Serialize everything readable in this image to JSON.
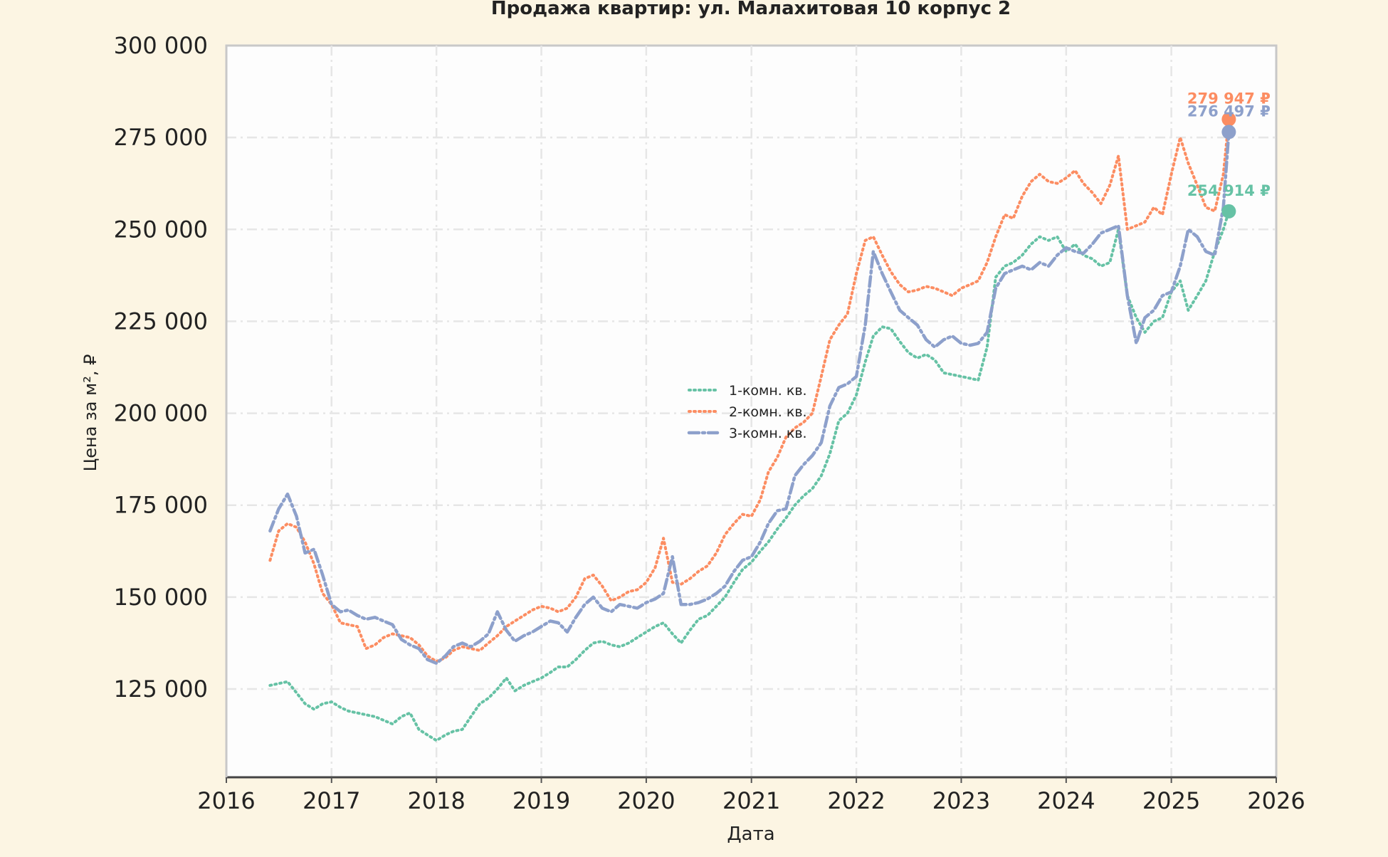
{
  "chart_data": {
    "type": "line",
    "title": "Продажа квартир: ул. Малахитовая 10 корпус 2",
    "xlabel": "Дата",
    "ylabel": "Цена за м², ₽",
    "xlim": [
      "2016-01-01",
      "2026-01-01"
    ],
    "ylim": [
      101000,
      300000
    ],
    "x_ticks": [
      "2016",
      "2017",
      "2018",
      "2019",
      "2020",
      "2021",
      "2022",
      "2023",
      "2024",
      "2025",
      "2026"
    ],
    "y_ticks": [
      "125 000",
      "150 000",
      "175 000",
      "200 000",
      "225 000",
      "250 000",
      "275 000",
      "300 000"
    ],
    "y_tick_values": [
      125000,
      150000,
      175000,
      200000,
      225000,
      250000,
      275000,
      300000
    ],
    "grid": true,
    "legend_position": "center",
    "colors": {
      "background": "#fcf5e3",
      "plot_bg": "#fdfdfd",
      "grid": "#e6e6e6"
    },
    "series": [
      {
        "name": "1-комн. кв.",
        "color": "#66c2a5",
        "dash": "dotted",
        "last_label": "254 914 ₽",
        "last_value": 254914,
        "x": [
          "2016-06-01",
          "2016-07-01",
          "2016-08-01",
          "2016-09-01",
          "2016-10-01",
          "2016-11-01",
          "2016-12-01",
          "2017-01-01",
          "2017-02-01",
          "2017-03-01",
          "2017-04-01",
          "2017-05-01",
          "2017-06-01",
          "2017-07-01",
          "2017-08-01",
          "2017-09-01",
          "2017-10-01",
          "2017-11-01",
          "2017-12-01",
          "2018-01-01",
          "2018-02-01",
          "2018-03-01",
          "2018-04-01",
          "2018-05-01",
          "2018-06-01",
          "2018-07-01",
          "2018-08-01",
          "2018-09-01",
          "2018-10-01",
          "2018-11-01",
          "2018-12-01",
          "2019-01-01",
          "2019-02-01",
          "2019-03-01",
          "2019-04-01",
          "2019-05-01",
          "2019-06-01",
          "2019-07-01",
          "2019-08-01",
          "2019-09-01",
          "2019-10-01",
          "2019-11-01",
          "2019-12-01",
          "2020-01-01",
          "2020-02-01",
          "2020-03-01",
          "2020-04-01",
          "2020-05-01",
          "2020-06-01",
          "2020-07-01",
          "2020-08-01",
          "2020-09-01",
          "2020-10-01",
          "2020-11-01",
          "2020-12-01",
          "2021-01-01",
          "2021-02-01",
          "2021-03-01",
          "2021-04-01",
          "2021-05-01",
          "2021-06-01",
          "2021-07-01",
          "2021-08-01",
          "2021-09-01",
          "2021-10-01",
          "2021-11-01",
          "2021-12-01",
          "2022-01-01",
          "2022-02-01",
          "2022-03-01",
          "2022-04-01",
          "2022-05-01",
          "2022-06-01",
          "2022-07-01",
          "2022-08-01",
          "2022-09-01",
          "2022-10-01",
          "2022-11-01",
          "2022-12-01",
          "2023-01-01",
          "2023-02-01",
          "2023-03-01",
          "2023-04-01",
          "2023-05-01",
          "2023-06-01",
          "2023-07-01",
          "2023-08-01",
          "2023-09-01",
          "2023-10-01",
          "2023-11-01",
          "2023-12-01",
          "2024-01-01",
          "2024-02-01",
          "2024-03-01",
          "2024-04-01",
          "2024-05-01",
          "2024-06-01",
          "2024-07-01",
          "2024-08-01",
          "2024-09-01",
          "2024-10-01",
          "2024-11-01",
          "2024-12-01",
          "2025-01-01",
          "2025-02-01",
          "2025-03-01",
          "2025-04-01",
          "2025-05-01",
          "2025-06-01",
          "2025-07-01",
          "2025-07-20"
        ],
        "values": [
          126000,
          126500,
          127000,
          124000,
          121000,
          119500,
          121000,
          121500,
          120000,
          119000,
          118500,
          118000,
          117500,
          116500,
          115500,
          117500,
          118500,
          114000,
          112500,
          111000,
          112500,
          113500,
          114000,
          117500,
          121000,
          122500,
          125000,
          128000,
          124500,
          126000,
          127000,
          128000,
          129500,
          131000,
          131000,
          133000,
          135500,
          137500,
          138000,
          137000,
          136500,
          137500,
          139000,
          140500,
          142000,
          143000,
          140000,
          137500,
          141000,
          144000,
          145000,
          147500,
          150000,
          154000,
          157500,
          159500,
          162500,
          165000,
          168500,
          171500,
          175000,
          177500,
          179500,
          183000,
          189000,
          198000,
          200000,
          205000,
          214000,
          221000,
          223500,
          223000,
          219500,
          216500,
          215000,
          216000,
          214500,
          211000,
          210500,
          210000,
          209500,
          209000,
          218000,
          237000,
          240000,
          241000,
          243000,
          246000,
          248000,
          247000,
          248000,
          244000,
          246000,
          243000,
          242000,
          240000,
          241000,
          250000,
          232000,
          226000,
          222000,
          225000,
          226000,
          233000,
          236000,
          228000,
          232000,
          236000,
          244000,
          250000,
          254914
        ]
      },
      {
        "name": "2-комн. кв.",
        "color": "#fc8d62",
        "dash": "dotted",
        "last_label": "279 947 ₽",
        "last_value": 279947,
        "x": [
          "2016-06-01",
          "2016-07-01",
          "2016-08-01",
          "2016-09-01",
          "2016-10-01",
          "2016-11-01",
          "2016-12-01",
          "2017-01-01",
          "2017-02-01",
          "2017-03-01",
          "2017-04-01",
          "2017-05-01",
          "2017-06-01",
          "2017-07-01",
          "2017-08-01",
          "2017-09-01",
          "2017-10-01",
          "2017-11-01",
          "2017-12-01",
          "2018-01-01",
          "2018-02-01",
          "2018-03-01",
          "2018-04-01",
          "2018-05-01",
          "2018-06-01",
          "2018-07-01",
          "2018-08-01",
          "2018-09-01",
          "2018-10-01",
          "2018-11-01",
          "2018-12-01",
          "2019-01-01",
          "2019-02-01",
          "2019-03-01",
          "2019-04-01",
          "2019-05-01",
          "2019-06-01",
          "2019-07-01",
          "2019-08-01",
          "2019-09-01",
          "2019-10-01",
          "2019-11-01",
          "2019-12-01",
          "2020-01-01",
          "2020-02-01",
          "2020-03-01",
          "2020-04-01",
          "2020-05-01",
          "2020-06-01",
          "2020-07-01",
          "2020-08-01",
          "2020-09-01",
          "2020-10-01",
          "2020-11-01",
          "2020-12-01",
          "2021-01-01",
          "2021-02-01",
          "2021-03-01",
          "2021-04-01",
          "2021-05-01",
          "2021-06-01",
          "2021-07-01",
          "2021-08-01",
          "2021-09-01",
          "2021-10-01",
          "2021-11-01",
          "2021-12-01",
          "2022-01-01",
          "2022-02-01",
          "2022-03-01",
          "2022-04-01",
          "2022-05-01",
          "2022-06-01",
          "2022-07-01",
          "2022-08-01",
          "2022-09-01",
          "2022-10-01",
          "2022-11-01",
          "2022-12-01",
          "2023-01-01",
          "2023-02-01",
          "2023-03-01",
          "2023-04-01",
          "2023-05-01",
          "2023-06-01",
          "2023-07-01",
          "2023-08-01",
          "2023-09-01",
          "2023-10-01",
          "2023-11-01",
          "2023-12-01",
          "2024-01-01",
          "2024-02-01",
          "2024-03-01",
          "2024-04-01",
          "2024-05-01",
          "2024-06-01",
          "2024-07-01",
          "2024-08-01",
          "2024-09-01",
          "2024-10-01",
          "2024-11-01",
          "2024-12-01",
          "2025-01-01",
          "2025-02-01",
          "2025-03-01",
          "2025-04-01",
          "2025-05-01",
          "2025-06-01",
          "2025-07-01",
          "2025-07-20"
        ],
        "values": [
          160000,
          168000,
          170000,
          169000,
          165000,
          159000,
          151000,
          148000,
          143000,
          142500,
          142000,
          136000,
          137000,
          139000,
          140000,
          139500,
          139000,
          137000,
          134000,
          132500,
          133500,
          135500,
          136500,
          136000,
          135500,
          137500,
          139500,
          142000,
          143500,
          145000,
          146500,
          147500,
          147000,
          146000,
          147000,
          150000,
          155000,
          156000,
          153000,
          149000,
          150000,
          151500,
          152000,
          154000,
          158000,
          166000,
          154000,
          153500,
          155000,
          157000,
          158500,
          162000,
          167000,
          170000,
          172500,
          172000,
          176500,
          184000,
          188000,
          193500,
          196000,
          197500,
          200000,
          210000,
          220000,
          224000,
          227000,
          238000,
          247000,
          248000,
          243000,
          238500,
          235000,
          233000,
          233500,
          234500,
          234000,
          233000,
          232000,
          234000,
          235000,
          236000,
          241000,
          248000,
          254000,
          253000,
          259000,
          263000,
          265000,
          263000,
          262500,
          264000,
          266000,
          262500,
          260000,
          257000,
          262000,
          270000,
          250000,
          251000,
          252000,
          256000,
          254000,
          265000,
          275000,
          268000,
          262000,
          256000,
          255000,
          265000,
          279947
        ]
      },
      {
        "name": "3-комн. кв.",
        "color": "#8da0cb",
        "dash": "dashdot",
        "last_label": "276 497 ₽",
        "last_value": 276497,
        "x": [
          "2016-06-01",
          "2016-07-01",
          "2016-08-01",
          "2016-09-01",
          "2016-10-01",
          "2016-11-01",
          "2016-12-01",
          "2017-01-01",
          "2017-02-01",
          "2017-03-01",
          "2017-04-01",
          "2017-05-01",
          "2017-06-01",
          "2017-07-01",
          "2017-08-01",
          "2017-09-01",
          "2017-10-01",
          "2017-11-01",
          "2017-12-01",
          "2018-01-01",
          "2018-02-01",
          "2018-03-01",
          "2018-04-01",
          "2018-05-01",
          "2018-06-01",
          "2018-07-01",
          "2018-08-01",
          "2018-09-01",
          "2018-10-01",
          "2018-11-01",
          "2018-12-01",
          "2019-01-01",
          "2019-02-01",
          "2019-03-01",
          "2019-04-01",
          "2019-05-01",
          "2019-06-01",
          "2019-07-01",
          "2019-08-01",
          "2019-09-01",
          "2019-10-01",
          "2019-11-01",
          "2019-12-01",
          "2020-01-01",
          "2020-02-01",
          "2020-03-01",
          "2020-04-01",
          "2020-05-01",
          "2020-06-01",
          "2020-07-01",
          "2020-08-01",
          "2020-09-01",
          "2020-10-01",
          "2020-11-01",
          "2020-12-01",
          "2021-01-01",
          "2021-02-01",
          "2021-03-01",
          "2021-04-01",
          "2021-05-01",
          "2021-06-01",
          "2021-07-01",
          "2021-08-01",
          "2021-09-01",
          "2021-10-01",
          "2021-11-01",
          "2021-12-01",
          "2022-01-01",
          "2022-02-01",
          "2022-03-01",
          "2022-04-01",
          "2022-05-01",
          "2022-06-01",
          "2022-07-01",
          "2022-08-01",
          "2022-09-01",
          "2022-10-01",
          "2022-11-01",
          "2022-12-01",
          "2023-01-01",
          "2023-02-01",
          "2023-03-01",
          "2023-04-01",
          "2023-05-01",
          "2023-06-01",
          "2023-07-01",
          "2023-08-01",
          "2023-09-01",
          "2023-10-01",
          "2023-11-01",
          "2023-12-01",
          "2024-01-01",
          "2024-02-01",
          "2024-03-01",
          "2024-04-01",
          "2024-05-01",
          "2024-06-01",
          "2024-07-01",
          "2024-08-01",
          "2024-09-01",
          "2024-10-01",
          "2024-11-01",
          "2024-12-01",
          "2025-01-01",
          "2025-02-01",
          "2025-03-01",
          "2025-04-01",
          "2025-05-01",
          "2025-06-01",
          "2025-07-01",
          "2025-07-20"
        ],
        "values": [
          168000,
          174000,
          178000,
          172000,
          162000,
          163000,
          156000,
          148000,
          146000,
          146500,
          145000,
          144000,
          144500,
          143500,
          142500,
          138500,
          137000,
          136000,
          133000,
          132000,
          134000,
          136500,
          137500,
          136500,
          138000,
          140000,
          146000,
          141000,
          138000,
          139500,
          140500,
          142000,
          143500,
          143000,
          140500,
          144500,
          148000,
          150000,
          147000,
          146000,
          148000,
          147500,
          147000,
          148500,
          149500,
          151000,
          161000,
          148000,
          148000,
          148500,
          149500,
          151000,
          153000,
          157000,
          160000,
          161000,
          165000,
          170000,
          173500,
          174000,
          183000,
          186000,
          188500,
          192000,
          202000,
          207000,
          208000,
          210000,
          224000,
          244000,
          238000,
          233000,
          228000,
          226000,
          224000,
          220000,
          218000,
          220000,
          221000,
          219000,
          218500,
          219000,
          222000,
          234000,
          238000,
          239000,
          240000,
          239000,
          241000,
          240000,
          243000,
          245000,
          244000,
          243500,
          246000,
          249000,
          250000,
          251000,
          232000,
          219000,
          226000,
          228000,
          232000,
          233000,
          240000,
          250000,
          248000,
          244000,
          243000,
          256000,
          276497
        ]
      }
    ]
  }
}
